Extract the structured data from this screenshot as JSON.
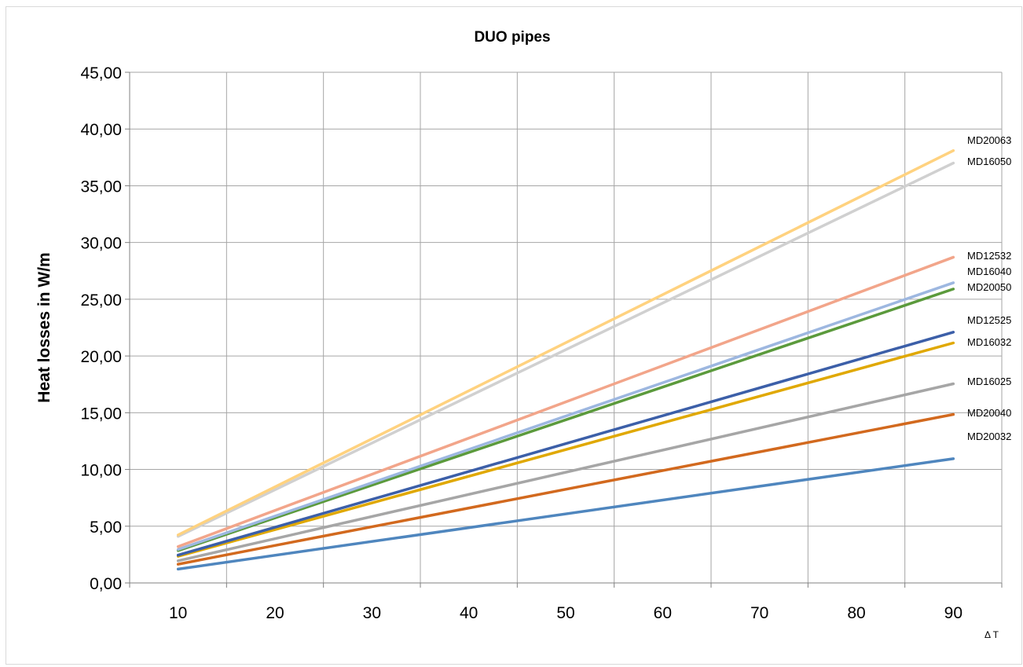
{
  "chart_data": {
    "type": "line",
    "title": "DUO pipes",
    "xlabel": "Δ T",
    "ylabel": "Heat losses in W/m",
    "x": [
      10,
      90
    ],
    "xlim": [
      5,
      95
    ],
    "ylim": [
      0,
      45
    ],
    "x_ticks": [
      "10",
      "20",
      "30",
      "40",
      "50",
      "60",
      "70",
      "80",
      "90"
    ],
    "y_ticks": [
      "0,00",
      "5,00",
      "10,00",
      "15,00",
      "20,00",
      "25,00",
      "30,00",
      "35,00",
      "40,00",
      "45,00"
    ],
    "grid": true,
    "legend": "labels at line ends (right)",
    "series": [
      {
        "name": "MD20063",
        "values": [
          4.23,
          38.1
        ],
        "color": "#FFD27F"
      },
      {
        "name": "MD16050",
        "values": [
          4.1,
          37.0
        ],
        "color": "#D0D0D0"
      },
      {
        "name": "MD12532",
        "values": [
          3.2,
          28.7
        ],
        "color": "#F2A58A"
      },
      {
        "name": "MD16040",
        "values": [
          2.95,
          26.45
        ],
        "color": "#9DB7E0"
      },
      {
        "name": "MD20050",
        "values": [
          2.85,
          25.9
        ],
        "color": "#5B9A3C"
      },
      {
        "name": "MD12525",
        "values": [
          2.45,
          22.1
        ],
        "color": "#3C5FA8"
      },
      {
        "name": "MD16032",
        "values": [
          2.35,
          21.15
        ],
        "color": "#E0A800"
      },
      {
        "name": "MD16025",
        "values": [
          1.95,
          17.55
        ],
        "color": "#A6A6A6"
      },
      {
        "name": "MD20040",
        "values": [
          1.65,
          14.85
        ],
        "color": "#D2691E"
      },
      {
        "name": "MD20032",
        "values": [
          1.22,
          10.95
        ],
        "color": "#4F86BE"
      }
    ]
  }
}
